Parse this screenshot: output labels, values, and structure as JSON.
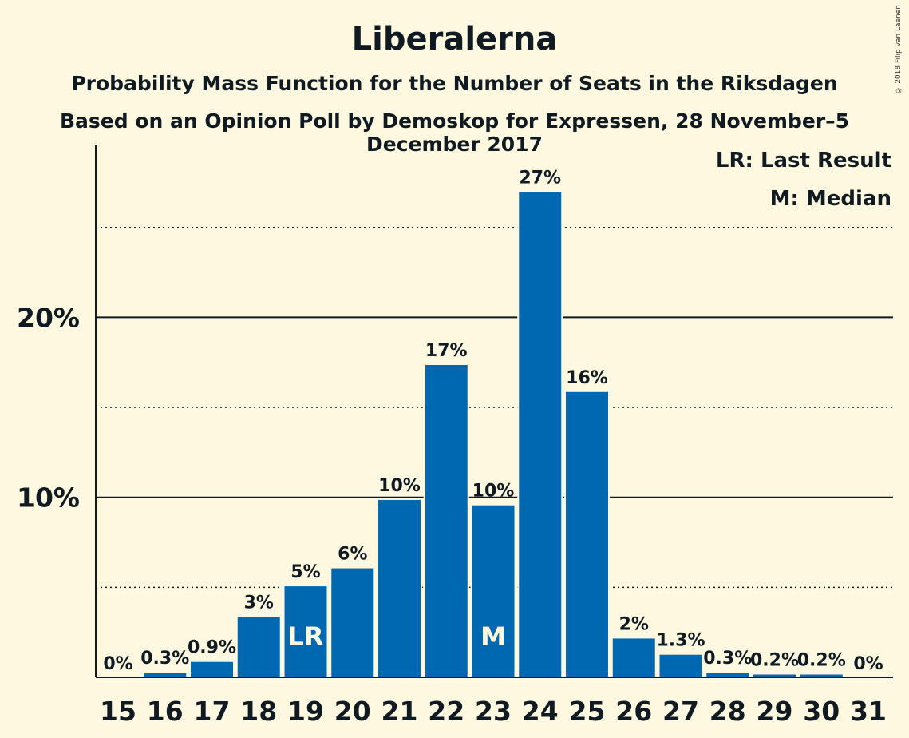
{
  "chart_data": {
    "type": "bar",
    "title": "Liberalerna",
    "subtitle": "Probability Mass Function for the Number of Seats in the Riksdagen",
    "subtitle2": "Based on an Opinion Poll by Demoskop for Expressen, 28 November–5 December 2017",
    "copyright": "© 2018 Filip van Laenen",
    "categories": [
      "15",
      "16",
      "17",
      "18",
      "19",
      "20",
      "21",
      "22",
      "23",
      "24",
      "25",
      "26",
      "27",
      "28",
      "29",
      "30",
      "31"
    ],
    "values": [
      0,
      0.3,
      0.9,
      3.4,
      5.1,
      6.1,
      9.9,
      17.4,
      9.6,
      27.0,
      15.9,
      2.2,
      1.3,
      0.3,
      0.2,
      0.2,
      0
    ],
    "value_labels": [
      "0%",
      "0.3%",
      "0.9%",
      "3%",
      "5%",
      "6%",
      "10%",
      "17%",
      "10%",
      "27%",
      "16%",
      "2%",
      "1.3%",
      "0.3%",
      "0.2%",
      "0.2%",
      "0%"
    ],
    "markers": [
      {
        "category": "19",
        "text": "LR"
      },
      {
        "category": "23",
        "text": "M"
      }
    ],
    "legend": [
      "LR: Last Result",
      "M: Median"
    ],
    "legend_position": "top-right",
    "ylim": [
      0,
      29.5
    ],
    "y_ticks": [
      {
        "value": 10,
        "label": "10%"
      },
      {
        "value": 20,
        "label": "20%"
      }
    ],
    "minor_gridlines": [
      5,
      15,
      25
    ],
    "xlabel": "",
    "ylabel": "",
    "colors": {
      "bar": "#0068b0",
      "background": "#fff8e1",
      "text": "#0f1a22"
    }
  }
}
